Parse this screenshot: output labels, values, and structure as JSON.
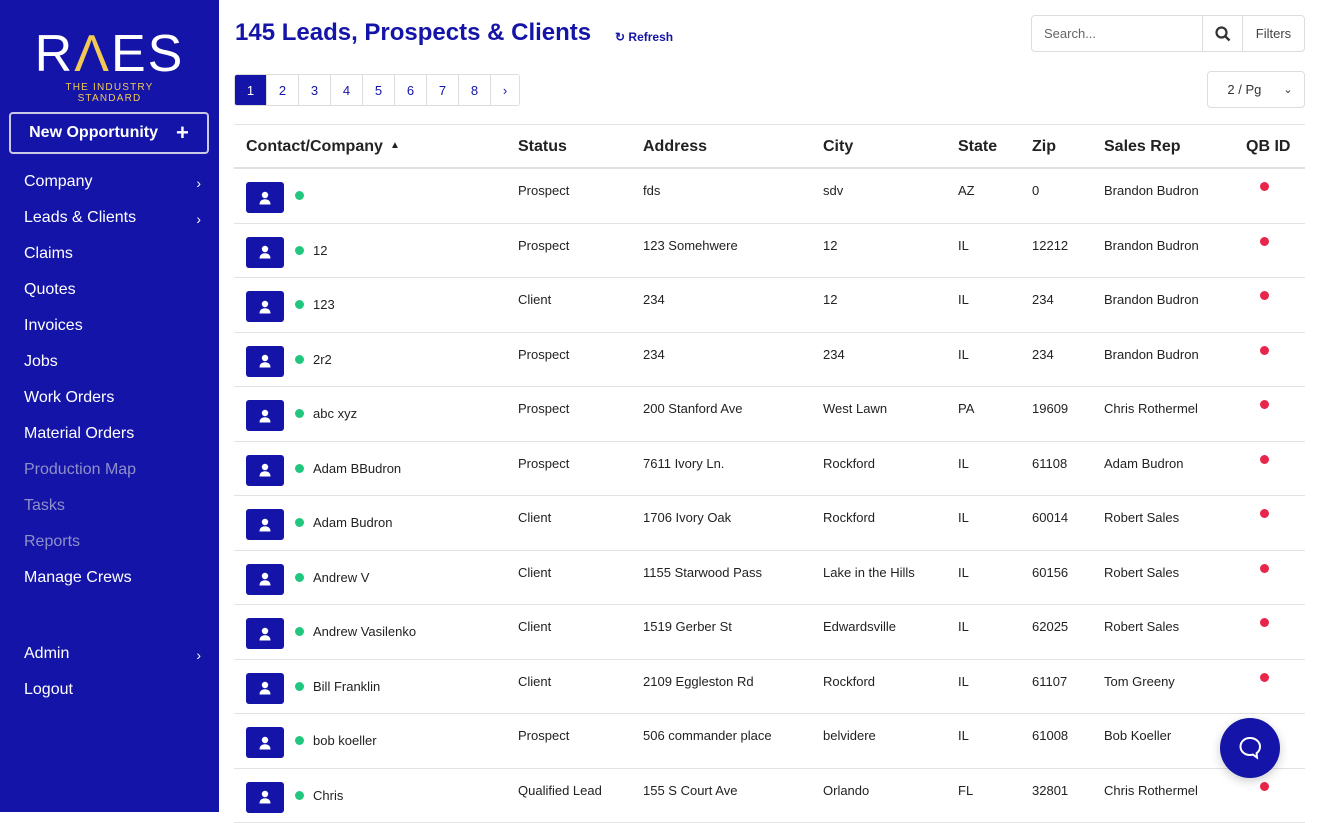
{
  "brand": {
    "logo_text": "RAES",
    "tagline": "THE INDUSTRY STANDARD"
  },
  "sidebar": {
    "new_opportunity": "New Opportunity",
    "items": [
      {
        "label": "Company",
        "chevron": true
      },
      {
        "label": "Leads & Clients",
        "chevron": true
      },
      {
        "label": "Claims"
      },
      {
        "label": "Quotes"
      },
      {
        "label": "Invoices"
      },
      {
        "label": "Jobs"
      },
      {
        "label": "Work Orders"
      },
      {
        "label": "Material Orders"
      },
      {
        "label": "Production Map",
        "disabled": true
      },
      {
        "label": "Tasks",
        "disabled": true
      },
      {
        "label": "Reports",
        "disabled": true
      },
      {
        "label": "Manage Crews"
      }
    ],
    "bottom": [
      {
        "label": "Admin",
        "chevron": true
      },
      {
        "label": "Logout"
      }
    ]
  },
  "header": {
    "title": "145 Leads, Prospects & Clients",
    "refresh": "Refresh",
    "search_placeholder": "Search...",
    "filters": "Filters",
    "per_page": "2 / Pg"
  },
  "pagination": {
    "pages": [
      "1",
      "2",
      "3",
      "4",
      "5",
      "6",
      "7",
      "8"
    ],
    "current": "1",
    "next": "›"
  },
  "table": {
    "columns": [
      "Contact/Company",
      "Status",
      "Address",
      "City",
      "State",
      "Zip",
      "Sales Rep",
      "QB ID"
    ],
    "sort_indicator": "▲",
    "rows": [
      [
        "",
        "Prospect",
        "fds",
        "sdv",
        "AZ",
        "0",
        "Brandon Budron"
      ],
      [
        "12",
        "Prospect",
        "123 Somehwere",
        "12",
        "IL",
        "12212",
        "Brandon Budron"
      ],
      [
        "123",
        "Client",
        "234",
        "12",
        "IL",
        "234",
        "Brandon Budron"
      ],
      [
        "2r2",
        "Prospect",
        "234",
        "234",
        "IL",
        "234",
        "Brandon Budron"
      ],
      [
        "abc xyz",
        "Prospect",
        "200 Stanford Ave",
        "West Lawn",
        "PA",
        "19609",
        "Chris Rothermel"
      ],
      [
        "Adam BBudron",
        "Prospect",
        "7611 Ivory Ln.",
        "Rockford",
        "IL",
        "61108",
        "Adam Budron"
      ],
      [
        "Adam Budron",
        "Client",
        "1706 Ivory Oak",
        "Rockford",
        "IL",
        "60014",
        "Robert Sales"
      ],
      [
        "Andrew V",
        "Client",
        "1155 Starwood Pass",
        "Lake in the Hills",
        "IL",
        "60156",
        "Robert Sales"
      ],
      [
        "Andrew Vasilenko",
        "Client",
        "1519 Gerber St",
        "Edwardsville",
        "IL",
        "62025",
        "Robert Sales"
      ],
      [
        "Bill Franklin",
        "Client",
        "2109 Eggleston Rd",
        "Rockford",
        "IL",
        "61107",
        "Tom Greeny"
      ],
      [
        "bob koeller",
        "Prospect",
        "506 commander place",
        "belvidere",
        "IL",
        "61008",
        "Bob Koeller"
      ],
      [
        "Chris",
        "Qualified Lead",
        "155 S Court Ave",
        "Orlando",
        "FL",
        "32801",
        "Chris Rothermel"
      ]
    ]
  },
  "colors": {
    "primary": "#1414a8",
    "accent": "#f2c955",
    "active_dot": "#22c77f",
    "qb_missing": "#e8254a"
  }
}
